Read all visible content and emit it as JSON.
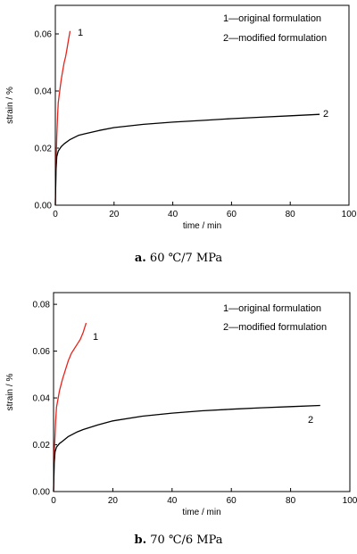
{
  "chart_data": [
    {
      "type": "line",
      "xlabel": "time / min",
      "ylabel": "strain / %",
      "xlim": [
        0,
        100
      ],
      "ylim": [
        0,
        0.07
      ],
      "xticks": [
        "0",
        "20",
        "40",
        "60",
        "80",
        "100"
      ],
      "yticks": [
        "0.00",
        "0.02",
        "0.04",
        "0.06"
      ],
      "ytick_values": [
        0,
        0.02,
        0.04,
        0.06
      ],
      "legend": [
        "1—original formulation",
        "2—modified formulation"
      ],
      "legend_position": "top-right",
      "caption_letter": "a.",
      "caption_text": "60 ℃/7 MPa",
      "series": [
        {
          "name": "1",
          "color": "#e8241c",
          "x": [
            0,
            0.2,
            0.5,
            0.8,
            1,
            1.5,
            2,
            2.5,
            3,
            3.5,
            4,
            4.5,
            5
          ],
          "y": [
            0,
            0.012,
            0.024,
            0.032,
            0.036,
            0.04,
            0.044,
            0.047,
            0.05,
            0.052,
            0.055,
            0.058,
            0.061
          ]
        },
        {
          "name": "2",
          "color": "#000000",
          "x": [
            0,
            0.2,
            0.5,
            1,
            2,
            3,
            5,
            8,
            10,
            15,
            20,
            30,
            40,
            50,
            60,
            70,
            80,
            90
          ],
          "y": [
            0,
            0.012,
            0.017,
            0.019,
            0.0205,
            0.0215,
            0.023,
            0.0245,
            0.025,
            0.0262,
            0.0272,
            0.0283,
            0.0291,
            0.0297,
            0.0303,
            0.0308,
            0.0313,
            0.0318
          ]
        }
      ]
    },
    {
      "type": "line",
      "xlabel": "time / min",
      "ylabel": "strain / %",
      "xlim": [
        0,
        100
      ],
      "ylim": [
        0,
        0.085
      ],
      "xticks": [
        "0",
        "20",
        "40",
        "60",
        "80",
        "100"
      ],
      "yticks": [
        "0.00",
        "0.02",
        "0.04",
        "0.06",
        "0.08"
      ],
      "ytick_values": [
        0,
        0.02,
        0.04,
        0.06,
        0.08
      ],
      "legend": [
        "1—original formulation",
        "2—modified formulation"
      ],
      "legend_position": "top-right",
      "caption_letter": "b.",
      "caption_text": "70 ℃/6 MPa",
      "series": [
        {
          "name": "1",
          "color": "#e8241c",
          "x": [
            0,
            0.3,
            0.7,
            1,
            2,
            3,
            4,
            5,
            6,
            7,
            8,
            9,
            10,
            11
          ],
          "y": [
            0,
            0.018,
            0.03,
            0.036,
            0.043,
            0.048,
            0.052,
            0.056,
            0.059,
            0.061,
            0.063,
            0.065,
            0.068,
            0.072
          ]
        },
        {
          "name": "2",
          "color": "#000000",
          "x": [
            0,
            0.2,
            0.5,
            1,
            2,
            3,
            5,
            8,
            10,
            15,
            20,
            30,
            40,
            50,
            60,
            70,
            80,
            90
          ],
          "y": [
            0,
            0.012,
            0.017,
            0.019,
            0.0205,
            0.0215,
            0.0235,
            0.0255,
            0.0265,
            0.0285,
            0.0302,
            0.0322,
            0.0335,
            0.0345,
            0.0352,
            0.0358,
            0.0363,
            0.0368
          ]
        }
      ]
    }
  ]
}
